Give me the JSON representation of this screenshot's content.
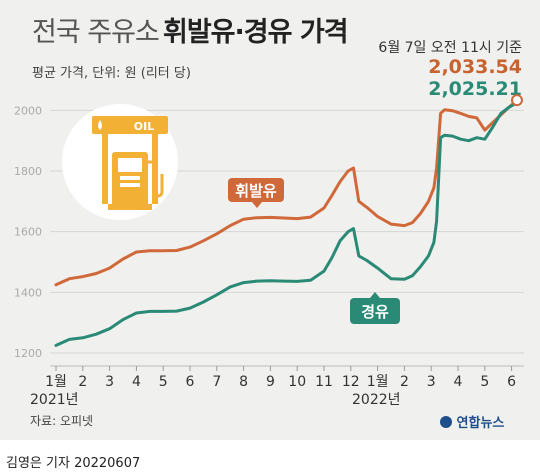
{
  "title": {
    "light": "전국 주유소",
    "bold": "휘발유·경유 가격"
  },
  "subtitle": "평균 가격, 단위: 원 (리터 당)",
  "as_of": "6월 7일 오전 11시 기준",
  "latest": {
    "gasoline": "2,033.54",
    "diesel": "2,025.21"
  },
  "source": "자료: 오피넷",
  "logo": "연합뉴스",
  "credit": "김영은 기자  20220607",
  "icon": {
    "name": "gas-pump-icon",
    "sign_text": "OIL"
  },
  "colors": {
    "gasoline": "#d0693a",
    "diesel": "#2a8a76",
    "background": "#f0f0ee"
  },
  "chart_data": {
    "type": "line",
    "x_ticks": [
      "1월",
      "2",
      "3",
      "4",
      "5",
      "6",
      "7",
      "8",
      "9",
      "10",
      "11",
      "12",
      "1월",
      "2",
      "3",
      "4",
      "5",
      "6"
    ],
    "year_labels": [
      "2021년",
      "2022년"
    ],
    "y_ticks": [
      1200,
      1400,
      1600,
      1800,
      2000
    ],
    "ylim": [
      1200,
      2060
    ],
    "grid": true,
    "series": [
      {
        "name": "휘발유",
        "x": [
          0,
          0.5,
          1,
          1.5,
          2,
          2.5,
          3,
          3.5,
          4,
          4.5,
          5,
          5.5,
          6,
          6.5,
          7,
          7.5,
          8,
          8.5,
          9,
          9.5,
          10,
          10.3,
          10.6,
          10.9,
          11.1,
          11.3,
          11.6,
          12,
          12.5,
          13,
          13.3,
          13.6,
          13.9,
          14.1,
          14.2,
          14.35,
          14.5,
          14.8,
          15.1,
          15.4,
          15.7,
          16,
          16.3,
          16.6,
          16.9,
          17.2
        ],
        "values": [
          1425,
          1445,
          1452,
          1462,
          1480,
          1510,
          1533,
          1537,
          1537,
          1538,
          1549,
          1570,
          1593,
          1620,
          1641,
          1646,
          1647,
          1645,
          1643,
          1648,
          1678,
          1720,
          1765,
          1800,
          1810,
          1700,
          1680,
          1650,
          1625,
          1620,
          1630,
          1660,
          1700,
          1745,
          1810,
          1990,
          2002,
          1999,
          1990,
          1980,
          1975,
          1935,
          1960,
          1985,
          2010,
          2033.54
        ]
      },
      {
        "name": "경유",
        "x": [
          0,
          0.5,
          1,
          1.5,
          2,
          2.5,
          3,
          3.5,
          4,
          4.5,
          5,
          5.5,
          6,
          6.5,
          7,
          7.5,
          8,
          8.5,
          9,
          9.5,
          10,
          10.3,
          10.6,
          10.9,
          11.1,
          11.3,
          11.6,
          12,
          12.5,
          13,
          13.3,
          13.6,
          13.9,
          14.1,
          14.2,
          14.35,
          14.5,
          14.8,
          15.1,
          15.4,
          15.7,
          16,
          16.3,
          16.6,
          16.9,
          17.2
        ],
        "values": [
          1225,
          1245,
          1250,
          1262,
          1280,
          1310,
          1332,
          1337,
          1337,
          1338,
          1348,
          1368,
          1392,
          1418,
          1432,
          1437,
          1438,
          1437,
          1436,
          1440,
          1470,
          1515,
          1570,
          1600,
          1610,
          1520,
          1505,
          1480,
          1445,
          1443,
          1455,
          1485,
          1520,
          1565,
          1635,
          1910,
          1918,
          1915,
          1905,
          1900,
          1910,
          1905,
          1945,
          1990,
          2010,
          2025.21
        ]
      }
    ],
    "annotations": [
      {
        "text": "휘발유",
        "series": "휘발유"
      },
      {
        "text": "경유",
        "series": "경유"
      }
    ]
  }
}
